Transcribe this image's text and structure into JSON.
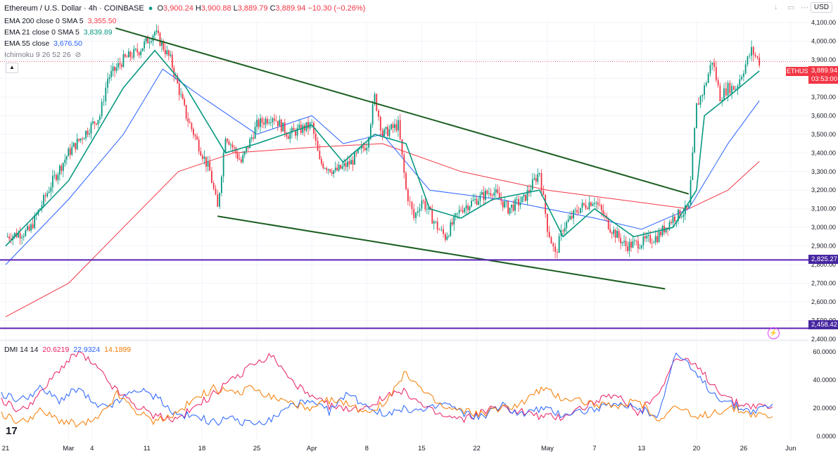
{
  "header": {
    "symbol_title": "Ethereum / U.S. Dollar · 4h · COINBASE",
    "ohlc": [
      {
        "key": "O",
        "value": "3,900.24"
      },
      {
        "key": "H",
        "value": "3,900.88"
      },
      {
        "key": "L",
        "value": "3,889.79"
      },
      {
        "key": "C",
        "value": "3,889.94"
      },
      {
        "key": "",
        "value": "−10.30 (−0.26%)"
      }
    ],
    "currency": "USD"
  },
  "indicators": [
    {
      "label": "EMA 200 close 0 SMA 5",
      "value": "3,355.50",
      "color": "#f23645"
    },
    {
      "label": "EMA 21 close 0 SMA 5",
      "value": "3,839.89",
      "color": "#089981"
    },
    {
      "label": "EMA 55 close",
      "value": "3,676.50",
      "color": "#2962ff"
    },
    {
      "label": "Ichimoku 9 26 52 26",
      "value": "",
      "color": "#787b86"
    }
  ],
  "dmi_legend": {
    "label": "DMI 14 14",
    "values": [
      {
        "value": "20.6219",
        "color": "#e91e63"
      },
      {
        "value": "22.9324",
        "color": "#2962ff"
      },
      {
        "value": "14.1899",
        "color": "#f57c00"
      }
    ]
  },
  "price_tags": {
    "symbol": "ETHUSD",
    "last_price": "3,889.94",
    "countdown": "03:53:00",
    "support_high": "2,825.27",
    "support_low": "2,458.42"
  },
  "colors": {
    "up": "#089981",
    "down": "#f23645",
    "trendline": "#1b5e20",
    "hline": "#5b21b6",
    "ema21": "#089981",
    "ema55": "#2962ff",
    "ema200": "#f23645"
  },
  "chart_data": [
    {
      "type": "candlestick",
      "title": "Ethereum / U.S. Dollar · 4h · COINBASE",
      "y_ticks": [
        "2,400.00",
        "2,500.00",
        "2,600.00",
        "2,700.00",
        "2,800.00",
        "2,900.00",
        "3,000.00",
        "3,100.00",
        "3,200.00",
        "3,300.00",
        "3,400.00",
        "3,500.00",
        "3,600.00",
        "3,700.00",
        "3,800.00",
        "3,900.00",
        "4,000.00",
        "4,100.00"
      ],
      "ylim": [
        2400,
        4100
      ],
      "x_ticks": [
        "21",
        "Mar",
        "4",
        "11",
        "18",
        "25",
        "Apr",
        "8",
        "15",
        "22",
        "May",
        "7",
        "13",
        "20",
        "26",
        "Jun"
      ],
      "close_path": [
        {
          "x": "Feb 21",
          "y": 2950
        },
        {
          "x": "Feb 24",
          "y": 2980
        },
        {
          "x": "Feb 27",
          "y": 3250
        },
        {
          "x": "Mar 1",
          "y": 3400
        },
        {
          "x": "Mar 3",
          "y": 3500
        },
        {
          "x": "Mar 5",
          "y": 3600
        },
        {
          "x": "Mar 6",
          "y": 3800
        },
        {
          "x": "Mar 8",
          "y": 3900
        },
        {
          "x": "Mar 10",
          "y": 3950
        },
        {
          "x": "Mar 12",
          "y": 4050
        },
        {
          "x": "Mar 14",
          "y": 3900
        },
        {
          "x": "Mar 16",
          "y": 3600
        },
        {
          "x": "Mar 19",
          "y": 3300
        },
        {
          "x": "Mar 20",
          "y": 3100
        },
        {
          "x": "Mar 21",
          "y": 3500
        },
        {
          "x": "Mar 23",
          "y": 3350
        },
        {
          "x": "Mar 25",
          "y": 3550
        },
        {
          "x": "Mar 27",
          "y": 3600
        },
        {
          "x": "Mar 29",
          "y": 3500
        },
        {
          "x": "Apr 1",
          "y": 3550
        },
        {
          "x": "Apr 2",
          "y": 3350
        },
        {
          "x": "Apr 4",
          "y": 3300
        },
        {
          "x": "Apr 6",
          "y": 3350
        },
        {
          "x": "Apr 8",
          "y": 3450
        },
        {
          "x": "Apr 9",
          "y": 3700
        },
        {
          "x": "Apr 10",
          "y": 3500
        },
        {
          "x": "Apr 12",
          "y": 3550
        },
        {
          "x": "Apr 13",
          "y": 3200
        },
        {
          "x": "Apr 14",
          "y": 3050
        },
        {
          "x": "Apr 15",
          "y": 3150
        },
        {
          "x": "Apr 17",
          "y": 3000
        },
        {
          "x": "Apr 18",
          "y": 2950
        },
        {
          "x": "Apr 20",
          "y": 3100
        },
        {
          "x": "Apr 22",
          "y": 3150
        },
        {
          "x": "Apr 24",
          "y": 3200
        },
        {
          "x": "Apr 26",
          "y": 3100
        },
        {
          "x": "Apr 28",
          "y": 3150
        },
        {
          "x": "Apr 30",
          "y": 3300
        },
        {
          "x": "May 1",
          "y": 3000
        },
        {
          "x": "May 2",
          "y": 2850
        },
        {
          "x": "May 3",
          "y": 3000
        },
        {
          "x": "May 5",
          "y": 3100
        },
        {
          "x": "May 7",
          "y": 3150
        },
        {
          "x": "May 9",
          "y": 3000
        },
        {
          "x": "May 11",
          "y": 2900
        },
        {
          "x": "May 13",
          "y": 2920
        },
        {
          "x": "May 15",
          "y": 2950
        },
        {
          "x": "May 17",
          "y": 3050
        },
        {
          "x": "May 19",
          "y": 3100
        },
        {
          "x": "May 20",
          "y": 3650
        },
        {
          "x": "May 21",
          "y": 3750
        },
        {
          "x": "May 22",
          "y": 3900
        },
        {
          "x": "May 23",
          "y": 3700
        },
        {
          "x": "May 24",
          "y": 3750
        },
        {
          "x": "May 25",
          "y": 3750
        },
        {
          "x": "May 26",
          "y": 3850
        },
        {
          "x": "May 27",
          "y": 3950
        },
        {
          "x": "May 28",
          "y": 3890
        }
      ],
      "ema21": [
        {
          "x": "Feb 21",
          "y": 2900
        },
        {
          "x": "Mar 1",
          "y": 3250
        },
        {
          "x": "Mar 8",
          "y": 3750
        },
        {
          "x": "Mar 12",
          "y": 3950
        },
        {
          "x": "Mar 16",
          "y": 3750
        },
        {
          "x": "Mar 21",
          "y": 3400
        },
        {
          "x": "Mar 25",
          "y": 3450
        },
        {
          "x": "Apr 1",
          "y": 3550
        },
        {
          "x": "Apr 5",
          "y": 3350
        },
        {
          "x": "Apr 9",
          "y": 3500
        },
        {
          "x": "Apr 13",
          "y": 3450
        },
        {
          "x": "Apr 16",
          "y": 3100
        },
        {
          "x": "Apr 20",
          "y": 3050
        },
        {
          "x": "Apr 24",
          "y": 3150
        },
        {
          "x": "Apr 30",
          "y": 3200
        },
        {
          "x": "May 3",
          "y": 2950
        },
        {
          "x": "May 7",
          "y": 3100
        },
        {
          "x": "May 12",
          "y": 2950
        },
        {
          "x": "May 17",
          "y": 3000
        },
        {
          "x": "May 20",
          "y": 3200
        },
        {
          "x": "May 21",
          "y": 3600
        },
        {
          "x": "May 24",
          "y": 3700
        },
        {
          "x": "May 28",
          "y": 3840
        }
      ],
      "ema55": [
        {
          "x": "Feb 21",
          "y": 2800
        },
        {
          "x": "Mar 1",
          "y": 3150
        },
        {
          "x": "Mar 8",
          "y": 3500
        },
        {
          "x": "Mar 13",
          "y": 3850
        },
        {
          "x": "Mar 18",
          "y": 3700
        },
        {
          "x": "Mar 25",
          "y": 3500
        },
        {
          "x": "Apr 1",
          "y": 3600
        },
        {
          "x": "Apr 5",
          "y": 3450
        },
        {
          "x": "Apr 10",
          "y": 3500
        },
        {
          "x": "Apr 16",
          "y": 3200
        },
        {
          "x": "Apr 25",
          "y": 3150
        },
        {
          "x": "May 1",
          "y": 3100
        },
        {
          "x": "May 7",
          "y": 3050
        },
        {
          "x": "May 13",
          "y": 2990
        },
        {
          "x": "May 19",
          "y": 3100
        },
        {
          "x": "May 24",
          "y": 3450
        },
        {
          "x": "May 28",
          "y": 3680
        }
      ],
      "ema200": [
        {
          "x": "Feb 21",
          "y": 2520
        },
        {
          "x": "Mar 1",
          "y": 2700
        },
        {
          "x": "Mar 8",
          "y": 3000
        },
        {
          "x": "Mar 15",
          "y": 3300
        },
        {
          "x": "Mar 22",
          "y": 3400
        },
        {
          "x": "Apr 1",
          "y": 3430
        },
        {
          "x": "Apr 10",
          "y": 3450
        },
        {
          "x": "Apr 20",
          "y": 3300
        },
        {
          "x": "May 1",
          "y": 3200
        },
        {
          "x": "May 10",
          "y": 3150
        },
        {
          "x": "May 19",
          "y": 3100
        },
        {
          "x": "May 24",
          "y": 3200
        },
        {
          "x": "May 28",
          "y": 3355
        }
      ],
      "trendlines": [
        {
          "from": {
            "x": "Mar 7",
            "y": 4070
          },
          "to": {
            "x": "May 19",
            "y": 3180
          }
        },
        {
          "from": {
            "x": "Mar 20",
            "y": 3060
          },
          "to": {
            "x": "May 16",
            "y": 2670
          }
        }
      ],
      "horizontal_levels": [
        2825.27,
        2458.42
      ]
    },
    {
      "type": "line",
      "title": "DMI 14 14",
      "y_ticks": [
        "0.0000",
        "20.0000",
        "40.0000",
        "60.0000"
      ],
      "ylim": [
        0,
        60
      ],
      "series": [
        {
          "name": "20.6219",
          "color": "#e91e63",
          "values": [
            26,
            18,
            30,
            48,
            60,
            48,
            32,
            22,
            14,
            12,
            20,
            30,
            40,
            50,
            58,
            40,
            28,
            22,
            18,
            22,
            28,
            32,
            20,
            14,
            12,
            18,
            20,
            18,
            14,
            14,
            20,
            26,
            28,
            16,
            30,
            56,
            50,
            36,
            24,
            22,
            21
          ]
        },
        {
          "name": "22.9324",
          "color": "#2962ff",
          "values": [
            30,
            26,
            34,
            26,
            34,
            20,
            24,
            34,
            28,
            16,
            14,
            10,
            12,
            8,
            12,
            22,
            24,
            18,
            30,
            22,
            14,
            20,
            18,
            24,
            16,
            14,
            22,
            16,
            20,
            16,
            18,
            20,
            22,
            20,
            14,
            60,
            44,
            30,
            22,
            18,
            23
          ]
        },
        {
          "name": "14.1899",
          "color": "#f57c00",
          "values": [
            16,
            10,
            18,
            12,
            8,
            12,
            30,
            18,
            10,
            16,
            26,
            34,
            30,
            34,
            28,
            24,
            18,
            26,
            22,
            18,
            24,
            46,
            30,
            20,
            18,
            16,
            20,
            24,
            34,
            28,
            26,
            22,
            20,
            26,
            12,
            22,
            12,
            18,
            20,
            16,
            14
          ]
        }
      ]
    }
  ]
}
